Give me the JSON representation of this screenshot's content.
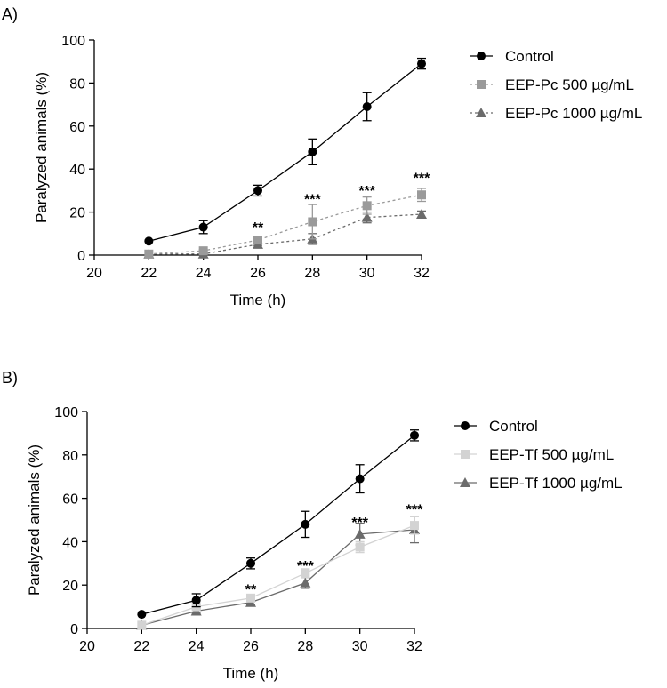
{
  "chart_data": [
    {
      "type": "line",
      "panel_label": "A)",
      "xlabel": "Time (h)",
      "ylabel": "Paralyzed animals (%)",
      "xlim": [
        20,
        32
      ],
      "ylim": [
        0,
        100
      ],
      "x_ticks": [
        "20",
        "22",
        "24",
        "26",
        "28",
        "30",
        "32"
      ],
      "y_ticks": [
        "0",
        "20",
        "40",
        "60",
        "80",
        "100"
      ],
      "x": [
        22,
        24,
        26,
        28,
        30,
        32
      ],
      "legend_position": "right",
      "series": [
        {
          "name": "Control",
          "marker": "circle",
          "color": "#000000",
          "line": "solid",
          "values": [
            6.5,
            13,
            30,
            48,
            69,
            89
          ],
          "errors": [
            0,
            3,
            2.5,
            6,
            6.5,
            2.5
          ]
        },
        {
          "name": "EEP-Pc 500 µg/mL",
          "marker": "square",
          "color": "#9a9a9a",
          "line": "dashed",
          "values": [
            0.5,
            2,
            7,
            15.5,
            23,
            28
          ],
          "errors": [
            0,
            0.5,
            1,
            8,
            4,
            3
          ]
        },
        {
          "name": "EEP-Pc 1000 µg/mL",
          "marker": "triangle",
          "color": "#6b6b6b",
          "line": "dashed",
          "values": [
            0.5,
            0.5,
            5,
            7.5,
            17.5,
            19
          ],
          "errors": [
            0,
            0,
            0.5,
            2.5,
            2.5,
            1.5
          ]
        }
      ],
      "annotations": [
        {
          "x": 26,
          "y": 14,
          "text": "**"
        },
        {
          "x": 28,
          "y": 27,
          "text": "***"
        },
        {
          "x": 30,
          "y": 31,
          "text": "***"
        },
        {
          "x": 32,
          "y": 37,
          "text": "***"
        }
      ]
    },
    {
      "type": "line",
      "panel_label": "B)",
      "xlabel": "Time (h)",
      "ylabel": "Paralyzed animals (%)",
      "xlim": [
        20,
        32
      ],
      "ylim": [
        0,
        100
      ],
      "x_ticks": [
        "20",
        "22",
        "24",
        "26",
        "28",
        "30",
        "32"
      ],
      "y_ticks": [
        "0",
        "20",
        "40",
        "60",
        "80",
        "100"
      ],
      "x": [
        22,
        24,
        26,
        28,
        30,
        32
      ],
      "legend_position": "right",
      "series": [
        {
          "name": "Control",
          "marker": "circle",
          "color": "#000000",
          "line": "solid",
          "values": [
            6.5,
            13,
            30,
            48,
            69,
            89
          ],
          "errors": [
            0,
            3,
            2.5,
            6,
            6.5,
            2.5
          ]
        },
        {
          "name": "EEP-Tf 500 µg/mL",
          "marker": "square",
          "color": "#d3d3d3",
          "line": "solid",
          "values": [
            1.5,
            10,
            14,
            25.5,
            37.5,
            47.5
          ],
          "errors": [
            0,
            1,
            1.5,
            2,
            2.5,
            4
          ]
        },
        {
          "name": "EEP-Tf 1000 µg/mL",
          "marker": "triangle",
          "color": "#6b6b6b",
          "line": "solid",
          "values": [
            1.5,
            8,
            12,
            21,
            43.5,
            45.5
          ],
          "errors": [
            0,
            1,
            1,
            2.5,
            5,
            6
          ]
        }
      ],
      "annotations": [
        {
          "x": 26,
          "y": 19,
          "text": "**"
        },
        {
          "x": 28,
          "y": 30,
          "text": "***"
        },
        {
          "x": 30,
          "y": 50,
          "text": "***"
        },
        {
          "x": 32,
          "y": 56,
          "text": "***"
        }
      ]
    }
  ]
}
